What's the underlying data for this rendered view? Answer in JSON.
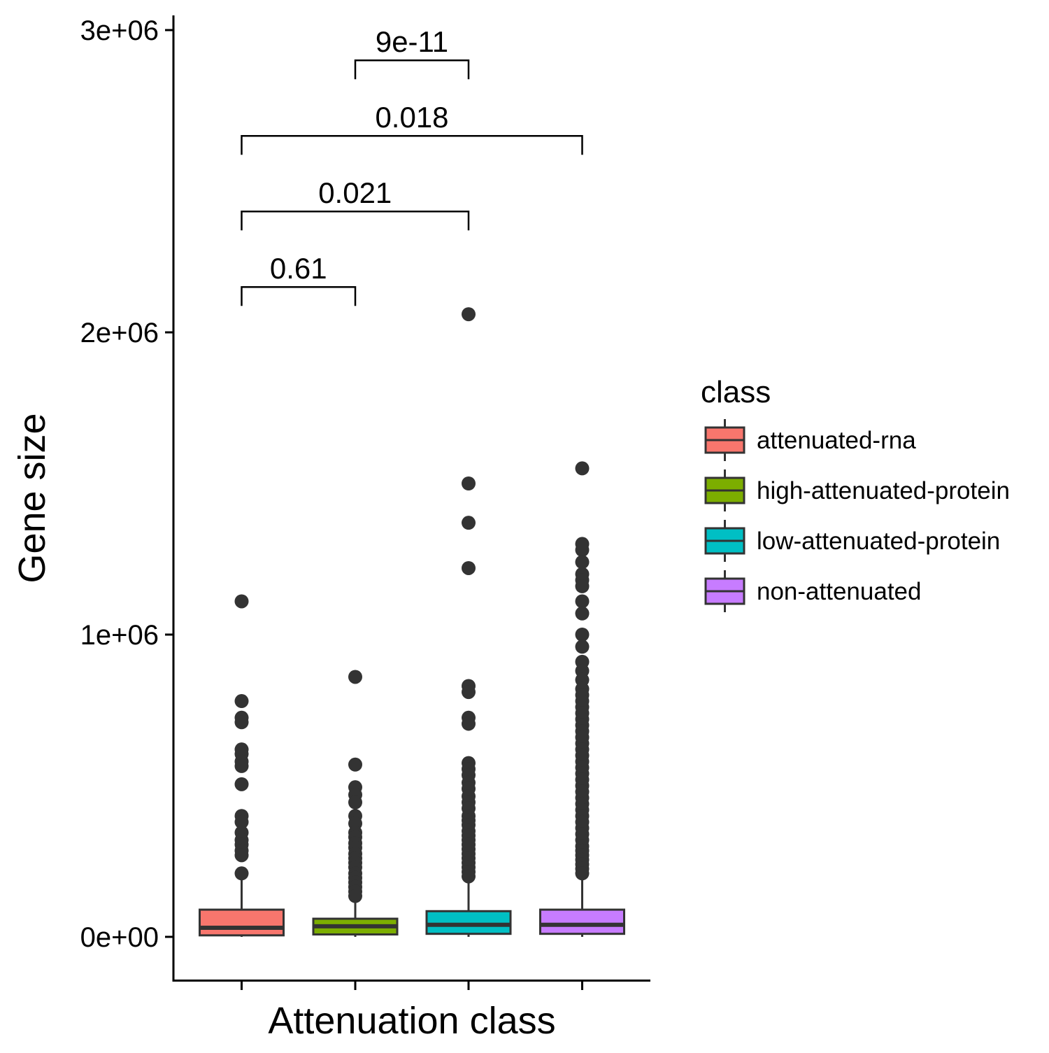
{
  "chart_data": {
    "type": "box",
    "xlabel": "Attenuation class",
    "ylabel": "Gene size",
    "ylim": [
      -150000,
      3000000
    ],
    "yticks": [
      0,
      1000000,
      2000000,
      3000000
    ],
    "ytick_labels": [
      "0e+00",
      "1e+06",
      "2e+06",
      "3e+06"
    ],
    "grid": false,
    "legend": {
      "title": "class",
      "position": "right",
      "entries": [
        "attenuated-rna",
        "high-attenuated-protein",
        "low-attenuated-protein",
        "non-attenuated"
      ]
    },
    "series": [
      {
        "name": "attenuated-rna",
        "color": "#F8766D",
        "q1": 5000,
        "median": 30000,
        "q3": 90000,
        "whisker_low": 0,
        "whisker_high": 200000,
        "outliers": [
          1110000,
          780000,
          725000,
          710000,
          620000,
          605000,
          580000,
          565000,
          505000,
          400000,
          380000,
          345000,
          320000,
          305000,
          285000,
          270000,
          210000
        ]
      },
      {
        "name": "high-attenuated-protein",
        "color": "#7CAE00",
        "q1": 8000,
        "median": 35000,
        "q3": 60000,
        "whisker_low": 0,
        "whisker_high": 120000,
        "outliers": [
          860000,
          570000,
          495000,
          470000,
          445000,
          400000,
          375000,
          345000,
          330000,
          310000,
          295000,
          275000,
          260000,
          245000,
          230000,
          210000,
          195000,
          180000,
          165000,
          150000,
          135000
        ]
      },
      {
        "name": "low-attenuated-protein",
        "color": "#00BFC4",
        "q1": 10000,
        "median": 40000,
        "q3": 85000,
        "whisker_low": 0,
        "whisker_high": 190000,
        "outliers": [
          2060000,
          1500000,
          1370000,
          1220000,
          830000,
          810000,
          725000,
          705000,
          575000,
          555000,
          535000,
          510000,
          490000,
          465000,
          445000,
          425000,
          400000,
          385000,
          370000,
          350000,
          335000,
          320000,
          305000,
          290000,
          275000,
          260000,
          245000,
          230000,
          215000,
          200000
        ]
      },
      {
        "name": "non-attenuated",
        "color": "#C77CFF",
        "q1": 10000,
        "median": 40000,
        "q3": 90000,
        "whisker_low": 0,
        "whisker_high": 200000,
        "outliers": [
          1550000,
          1300000,
          1280000,
          1240000,
          1200000,
          1180000,
          1160000,
          1110000,
          1070000,
          1000000,
          960000,
          910000,
          880000,
          850000,
          820000,
          800000,
          780000,
          760000,
          740000,
          720000,
          700000,
          680000,
          660000,
          640000,
          620000,
          600000,
          580000,
          560000,
          540000,
          520000,
          500000,
          480000,
          460000,
          440000,
          420000,
          400000,
          380000,
          360000,
          340000,
          320000,
          300000,
          285000,
          270000,
          255000,
          240000,
          225000,
          210000
        ]
      }
    ],
    "comparisons": [
      {
        "group1": 0,
        "group2": 1,
        "label": "0.61",
        "y": 2150000
      },
      {
        "group1": 0,
        "group2": 2,
        "label": "0.021",
        "y": 2400000
      },
      {
        "group1": 0,
        "group2": 3,
        "label": "0.018",
        "y": 2650000
      },
      {
        "group1": 1,
        "group2": 2,
        "label": "9e-11",
        "y": 2900000
      }
    ]
  }
}
